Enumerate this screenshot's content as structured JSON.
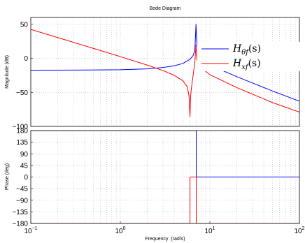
{
  "chart_data": [
    {
      "panel": "magnitude",
      "type": "line",
      "title": "Bode Diagram",
      "ylabel": "Magnitude (dB)",
      "xscale": "log",
      "xlim": [
        0.1,
        100
      ],
      "ylim": [
        -100,
        60
      ],
      "yticks": [
        50,
        0,
        -50,
        -100
      ],
      "ytick_labels": [
        "50",
        "0",
        "−50",
        "−100"
      ],
      "grid": true,
      "legend_position": "top-right",
      "legend": [
        {
          "label_base": "H",
          "label_sub": "θf",
          "label_suffix": "(s)",
          "color": "#0000ff"
        },
        {
          "label_base": "H",
          "label_sub": "xf",
          "label_suffix": "(s)",
          "color": "#ff0000"
        }
      ],
      "series": [
        {
          "color": "#0000ff",
          "x": [
            0.1,
            0.3,
            1,
            2,
            3,
            4,
            5,
            6,
            6.5,
            6.8,
            7.0,
            7.1,
            7.2,
            7.5,
            8,
            10,
            20,
            50,
            100
          ],
          "y": [
            -17.5,
            -17.3,
            -16.8,
            -15.5,
            -13.5,
            -11,
            -7.5,
            -1.5,
            4,
            12,
            50,
            32,
            20,
            8,
            0,
            -10,
            -27,
            -48,
            -63
          ]
        },
        {
          "color": "#ff0000",
          "x": [
            0.1,
            0.3,
            1,
            2,
            3,
            4,
            5,
            5.6,
            5.85,
            6.0,
            6.1,
            6.25,
            6.5,
            6.8,
            7.0,
            7.1,
            7.2,
            7.5,
            8,
            10,
            20,
            50,
            100
          ],
          "y": [
            42.5,
            23.5,
            2.5,
            -10,
            -18,
            -25,
            -33,
            -42,
            -55,
            -86,
            -55,
            -42,
            -25,
            -5,
            20,
            5,
            -2,
            -8,
            -14,
            -24,
            -43,
            -65,
            -79
          ]
        }
      ]
    },
    {
      "panel": "phase",
      "type": "line",
      "xlabel": "Frequency  (rad/s)",
      "ylabel": "Phase (deg)",
      "xscale": "log",
      "xlim": [
        0.1,
        100
      ],
      "xticks": [
        0.1,
        1,
        10,
        100
      ],
      "xtick_labels": [
        {
          "base": "10",
          "exp": "−1"
        },
        {
          "base": "10",
          "exp": "0"
        },
        {
          "base": "10",
          "exp": "1"
        },
        {
          "base": "10",
          "exp": "2"
        }
      ],
      "ylim": [
        -180,
        180
      ],
      "yticks": [
        180,
        135,
        90,
        45,
        0,
        -45,
        -90,
        -135,
        -180
      ],
      "ytick_labels": [
        "180",
        "135",
        "90",
        "45",
        "0",
        "−45",
        "−90",
        "−135",
        "−180"
      ],
      "grid": true,
      "series": [
        {
          "color": "#0000ff",
          "x": [
            0.1,
            7.05,
            7.05,
            100
          ],
          "y": [
            180,
            180,
            0,
            0
          ]
        },
        {
          "color": "#ff0000",
          "x": [
            0.1,
            6.0,
            6.0,
            7.05,
            7.05,
            100
          ],
          "y": [
            -180,
            -180,
            0,
            0,
            -180,
            -180
          ]
        }
      ]
    }
  ]
}
